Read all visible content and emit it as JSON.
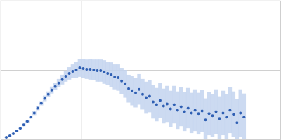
{
  "chart_data": {
    "type": "scatter",
    "color": "#2f5fb3",
    "marker": "circle",
    "grid": true,
    "tick_labels": false,
    "xlim": [
      0,
      0.348
    ],
    "ylim": [
      0,
      2
    ],
    "xticks": [
      0.1
    ],
    "yticks": [
      1
    ],
    "x": [
      0.007,
      0.0113,
      0.0157,
      0.02,
      0.0244,
      0.0287,
      0.0331,
      0.0374,
      0.0418,
      0.0461,
      0.0505,
      0.0548,
      0.0592,
      0.0635,
      0.0679,
      0.0722,
      0.0766,
      0.0809,
      0.0853,
      0.0896,
      0.094,
      0.0983,
      0.1027,
      0.107,
      0.1114,
      0.1157,
      0.1201,
      0.1244,
      0.1288,
      0.1331,
      0.1375,
      0.1418,
      0.1462,
      0.1505,
      0.1549,
      0.1592,
      0.1636,
      0.1679,
      0.1723,
      0.1766,
      0.181,
      0.1853,
      0.1897,
      0.194,
      0.1984,
      0.2027,
      0.2071,
      0.2114,
      0.2158,
      0.2201,
      0.2245,
      0.2288,
      0.2332,
      0.2375,
      0.2419,
      0.2462,
      0.2506,
      0.2549,
      0.2593,
      0.2636,
      0.268,
      0.2723,
      0.2767,
      0.281,
      0.2854,
      0.2897,
      0.2941,
      0.2984,
      0.3028
    ],
    "values": [
      0.03,
      0.05,
      0.08,
      0.12,
      0.16,
      0.21,
      0.26,
      0.32,
      0.38,
      0.45,
      0.52,
      0.59,
      0.65,
      0.71,
      0.76,
      0.81,
      0.86,
      0.91,
      0.95,
      0.98,
      1.0,
      1.03,
      1.02,
      1.01,
      1.01,
      1.0,
      0.99,
      0.99,
      0.97,
      0.95,
      0.93,
      0.9,
      0.89,
      0.84,
      0.8,
      0.73,
      0.7,
      0.67,
      0.72,
      0.65,
      0.6,
      0.62,
      0.54,
      0.5,
      0.56,
      0.48,
      0.51,
      0.44,
      0.5,
      0.42,
      0.47,
      0.4,
      0.45,
      0.38,
      0.42,
      0.37,
      0.41,
      0.28,
      0.37,
      0.34,
      0.4,
      0.3,
      0.38,
      0.32,
      0.42,
      0.36,
      0.24,
      0.38,
      0.32
    ],
    "errors": [
      0.01,
      0.01,
      0.01,
      0.01,
      0.01,
      0.02,
      0.02,
      0.02,
      0.03,
      0.03,
      0.03,
      0.04,
      0.04,
      0.05,
      0.05,
      0.06,
      0.07,
      0.08,
      0.09,
      0.1,
      0.12,
      0.13,
      0.14,
      0.14,
      0.15,
      0.15,
      0.16,
      0.16,
      0.17,
      0.17,
      0.18,
      0.18,
      0.19,
      0.19,
      0.2,
      0.2,
      0.21,
      0.21,
      0.22,
      0.22,
      0.23,
      0.23,
      0.24,
      0.24,
      0.25,
      0.25,
      0.26,
      0.26,
      0.27,
      0.27,
      0.28,
      0.28,
      0.29,
      0.29,
      0.3,
      0.3,
      0.3,
      0.31,
      0.31,
      0.31,
      0.32,
      0.32,
      0.32,
      0.33,
      0.33,
      0.33,
      0.34,
      0.34,
      0.34
    ]
  }
}
